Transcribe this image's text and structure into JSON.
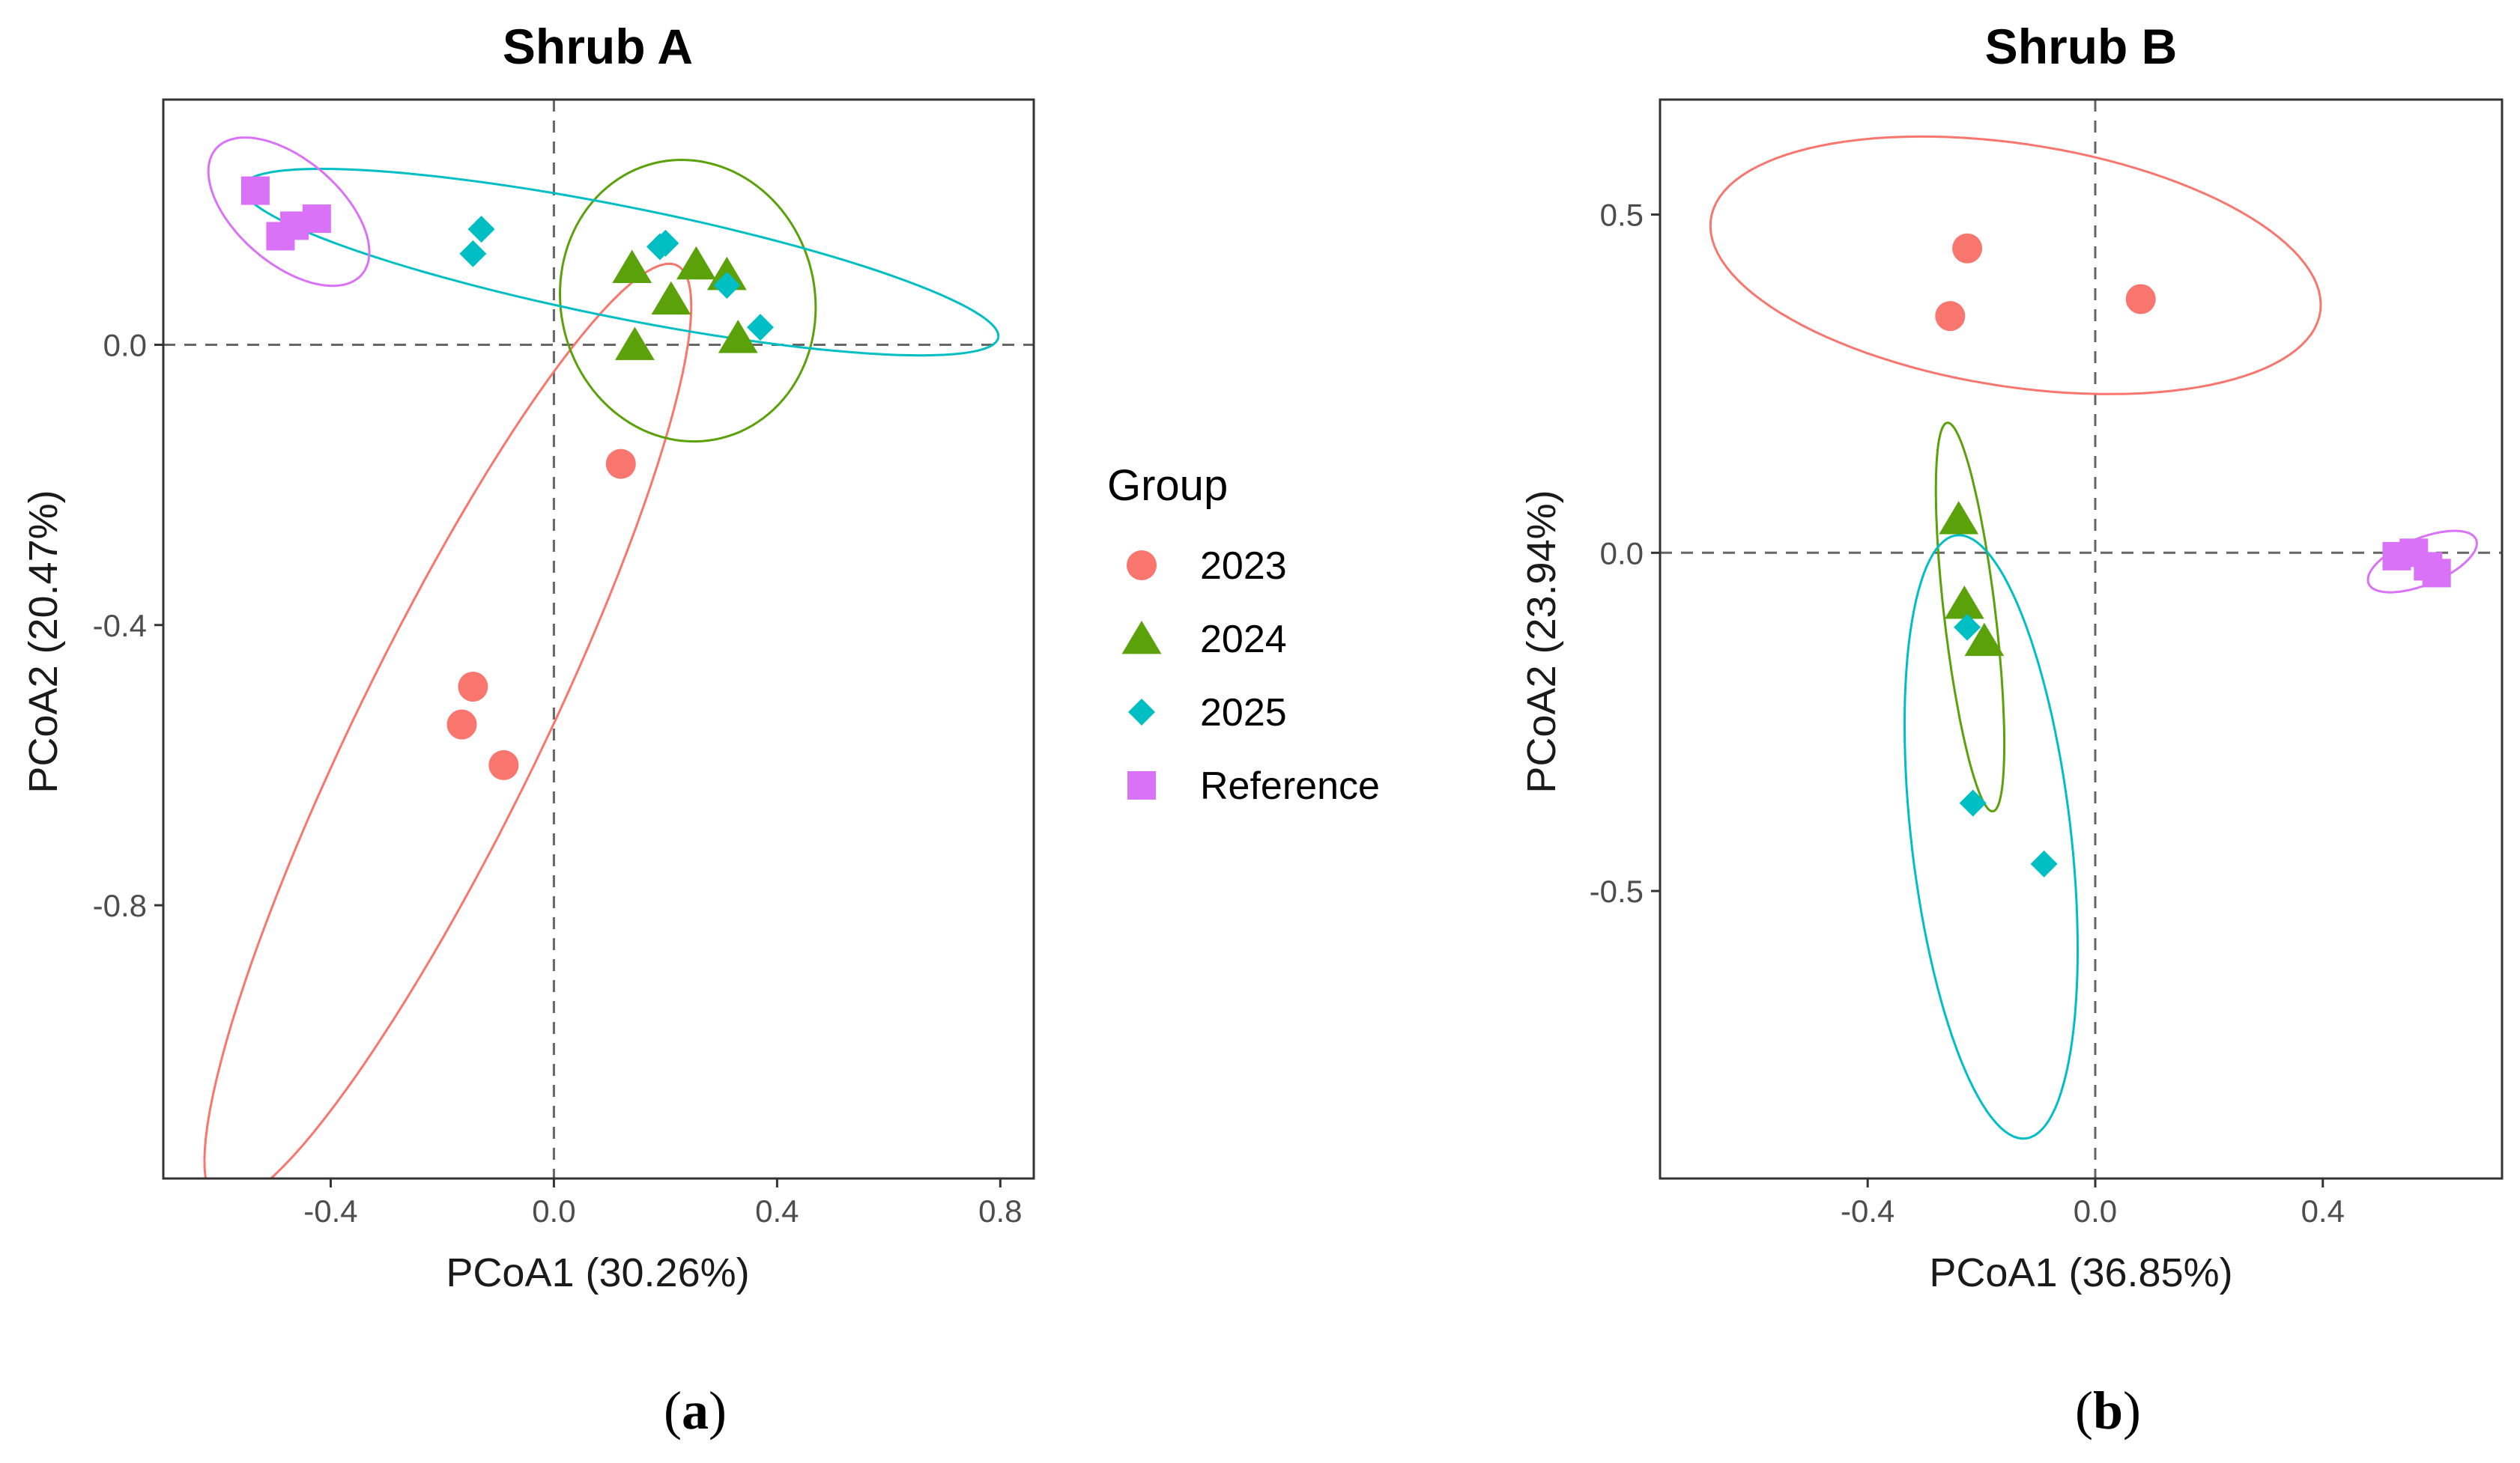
{
  "legend": {
    "title": "Group",
    "items": [
      {
        "label": "2023",
        "color": "#F8766D",
        "shape": "circle"
      },
      {
        "label": "2024",
        "color": "#5AA10A",
        "shape": "triangle"
      },
      {
        "label": "2025",
        "color": "#00BFC4",
        "shape": "diamond"
      },
      {
        "label": "Reference",
        "color": "#DA72F7",
        "shape": "square"
      }
    ]
  },
  "chart_data": [
    {
      "type": "scatter",
      "title": "Shrub A",
      "caption": "a",
      "xlabel": "PCoA1 (30.26%)",
      "ylabel": "PCoA2 (20.47%)",
      "xlim": [
        -0.7,
        0.86
      ],
      "ylim": [
        -1.19,
        0.35
      ],
      "xticks": [
        -0.4,
        0.0,
        0.4,
        0.8
      ],
      "yticks": [
        -0.8,
        -0.4,
        0.0
      ],
      "xtick_labels": [
        "-0.4",
        "0.0",
        "0.4",
        "0.8"
      ],
      "ytick_labels": [
        "-0.8",
        "-0.4",
        "0.0"
      ],
      "series": [
        {
          "name": "2023",
          "points": [
            [
              0.12,
              -0.17
            ],
            [
              -0.145,
              -0.488
            ],
            [
              -0.165,
              -0.542
            ],
            [
              -0.09,
              -0.6
            ]
          ],
          "ellipse": {
            "cx": -0.19,
            "cy": -0.555,
            "rx": 0.785,
            "ry": 0.155,
            "angle_deg": 58
          }
        },
        {
          "name": "2024",
          "points": [
            [
              0.14,
              0.11
            ],
            [
              0.255,
              0.115
            ],
            [
              0.31,
              0.1
            ],
            [
              0.21,
              0.065
            ],
            [
              0.145,
              0.0
            ],
            [
              0.33,
              0.01
            ]
          ],
          "ellipse": {
            "cx": 0.24,
            "cy": 0.063,
            "rx": 0.23,
            "ry": 0.2,
            "angle_deg": -10
          }
        },
        {
          "name": "2025",
          "points": [
            [
              -0.13,
              0.165
            ],
            [
              -0.145,
              0.13
            ],
            [
              0.2,
              0.145
            ],
            [
              0.19,
              0.14
            ],
            [
              0.31,
              0.085
            ],
            [
              0.37,
              0.025
            ]
          ],
          "ellipse": {
            "cx": 0.12,
            "cy": 0.118,
            "rx": 0.685,
            "ry": 0.08,
            "angle_deg": -9
          }
        },
        {
          "name": "Reference",
          "points": [
            [
              -0.535,
              0.22
            ],
            [
              -0.49,
              0.155
            ],
            [
              -0.425,
              0.18
            ],
            [
              -0.465,
              0.17
            ]
          ],
          "ellipse": {
            "cx": -0.475,
            "cy": 0.19,
            "rx": 0.16,
            "ry": 0.08,
            "angle_deg": -30
          }
        }
      ]
    },
    {
      "type": "scatter",
      "title": "Shrub B",
      "caption": "b",
      "xlabel": "PCoA1 (36.85%)",
      "ylabel": "PCoA2 (23.94%)",
      "xlim": [
        -0.765,
        0.715
      ],
      "ylim": [
        -0.925,
        0.67
      ],
      "xticks": [
        -0.4,
        0.0,
        0.4
      ],
      "yticks": [
        -0.5,
        0.0,
        0.5
      ],
      "xtick_labels": [
        "-0.4",
        "0.0",
        "0.4"
      ],
      "ytick_labels": [
        "-0.5",
        "0.0",
        "0.5"
      ],
      "series": [
        {
          "name": "2023",
          "points": [
            [
              -0.225,
              0.45
            ],
            [
              -0.255,
              0.35
            ],
            [
              0.08,
              0.375
            ]
          ],
          "ellipse": {
            "cx": -0.14,
            "cy": 0.425,
            "rx": 0.54,
            "ry": 0.18,
            "angle_deg": -7
          }
        },
        {
          "name": "2024",
          "points": [
            [
              -0.24,
              0.05
            ],
            [
              -0.23,
              -0.075
            ],
            [
              -0.195,
              -0.13
            ]
          ],
          "ellipse": {
            "cx": -0.22,
            "cy": -0.095,
            "rx": 0.29,
            "ry": 0.045,
            "angle_deg": -82
          }
        },
        {
          "name": "2025",
          "points": [
            [
              -0.225,
              -0.11
            ],
            [
              -0.215,
              -0.37
            ],
            [
              -0.09,
              -0.46
            ]
          ],
          "ellipse": {
            "cx": -0.183,
            "cy": -0.42,
            "rx": 0.45,
            "ry": 0.14,
            "angle_deg": -82
          }
        },
        {
          "name": "Reference",
          "points": [
            [
              0.53,
              -0.005
            ],
            [
              0.56,
              0.0
            ],
            [
              0.585,
              -0.02
            ],
            [
              0.6,
              -0.03
            ]
          ],
          "ellipse": {
            "cx": 0.575,
            "cy": -0.013,
            "rx": 0.1,
            "ry": 0.035,
            "angle_deg": 18
          }
        }
      ]
    }
  ]
}
